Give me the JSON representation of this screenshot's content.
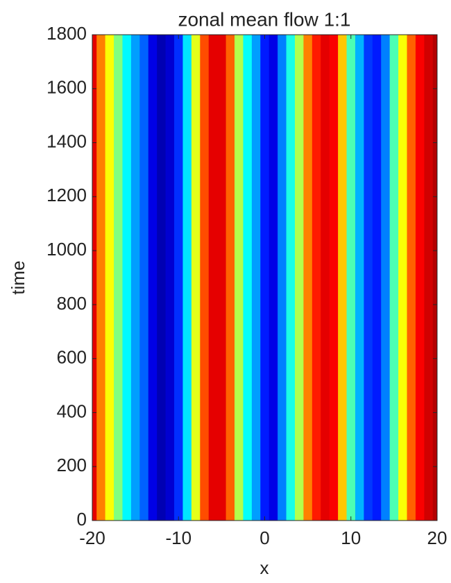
{
  "chart_data": {
    "type": "heatmap",
    "title": "zonal mean flow  1:1",
    "xlabel": "x",
    "ylabel": "time",
    "colormap": "jet",
    "x": [
      -20,
      -19,
      -18,
      -17,
      -16,
      -15,
      -14,
      -13,
      -12,
      -11,
      -10,
      -9,
      -8,
      -7,
      -6,
      -5,
      -4,
      -3,
      -2,
      -1,
      0,
      1,
      2,
      3,
      4,
      5,
      6,
      7,
      8,
      9,
      10,
      11,
      12,
      13,
      14,
      15,
      16,
      17,
      18,
      19,
      20
    ],
    "values": [
      0.9,
      0.75,
      0.62,
      0.5,
      0.37,
      0.28,
      0.22,
      0.1,
      0.05,
      0.08,
      0.17,
      0.35,
      0.6,
      0.8,
      0.9,
      0.9,
      0.78,
      0.55,
      0.38,
      0.28,
      0.15,
      0.1,
      0.25,
      0.4,
      0.55,
      0.75,
      0.85,
      0.9,
      0.88,
      0.68,
      0.45,
      0.3,
      0.18,
      0.15,
      0.25,
      0.45,
      0.62,
      0.78,
      0.88,
      0.92,
      0.95
    ],
    "xlim": [
      -20,
      20
    ],
    "xticks": [
      -20,
      -10,
      0,
      10,
      20
    ],
    "ylim": [
      0,
      1800
    ],
    "yticks": [
      0,
      200,
      400,
      600,
      800,
      1000,
      1200,
      1400,
      1600,
      1800
    ]
  }
}
